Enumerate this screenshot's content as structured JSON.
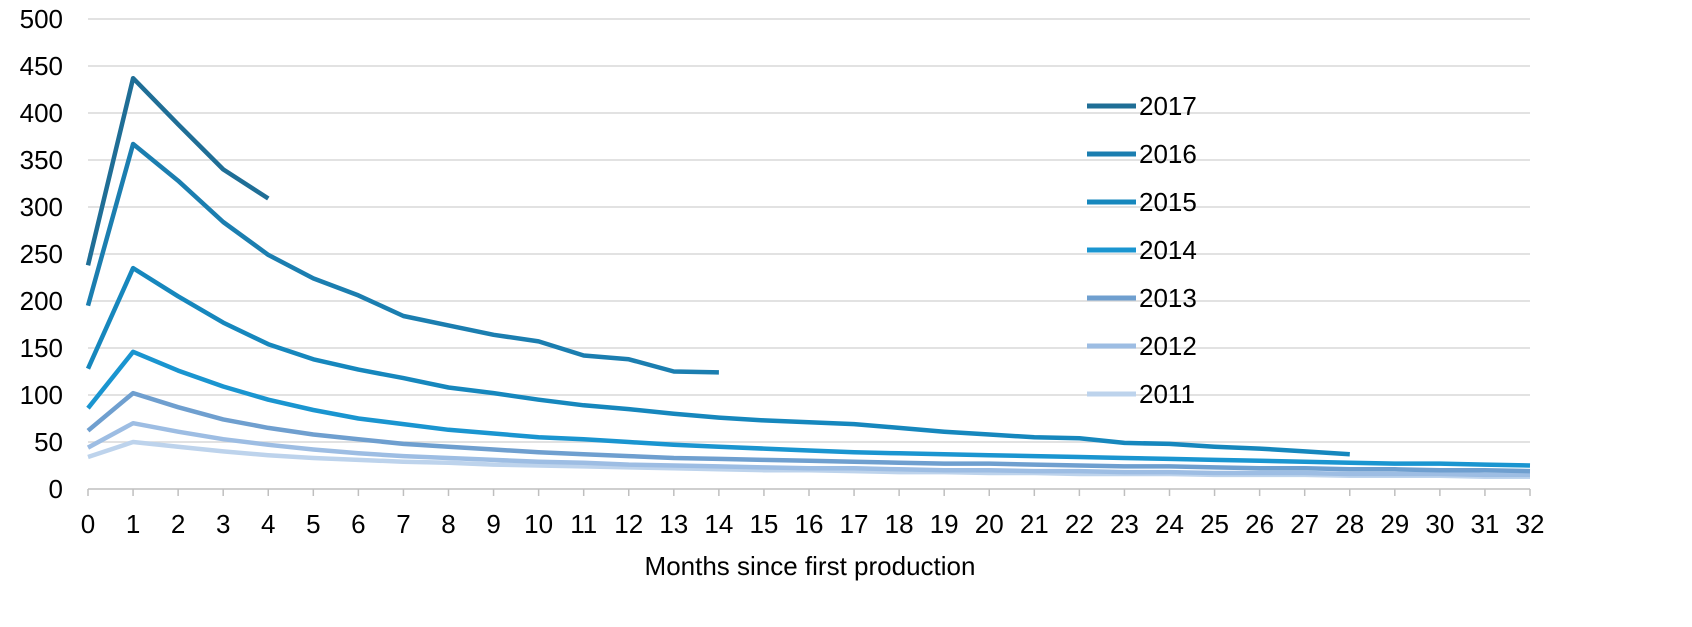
{
  "chart_data": {
    "type": "line",
    "title": "",
    "xlabel": "Months since first production",
    "ylabel": "",
    "xlim": [
      0,
      32
    ],
    "ylim": [
      0,
      500
    ],
    "y_ticks": [
      0,
      50,
      100,
      150,
      200,
      250,
      300,
      350,
      400,
      450,
      500
    ],
    "x_ticks": [
      0,
      1,
      2,
      3,
      4,
      5,
      6,
      7,
      8,
      9,
      10,
      11,
      12,
      13,
      14,
      15,
      16,
      17,
      18,
      19,
      20,
      21,
      22,
      23,
      24,
      25,
      26,
      27,
      28,
      29,
      30,
      31,
      32
    ],
    "grid": true,
    "legend_position": "right",
    "series": [
      {
        "name": "2017",
        "color": "#1f6e96",
        "x": [
          0,
          1,
          2,
          3,
          4
        ],
        "values": [
          238,
          437,
          388,
          340,
          309
        ]
      },
      {
        "name": "2016",
        "color": "#1b7eb0",
        "x": [
          0,
          1,
          2,
          3,
          4,
          5,
          6,
          7,
          8,
          9,
          10,
          11,
          12,
          13,
          14
        ],
        "values": [
          195,
          367,
          328,
          284,
          249,
          224,
          206,
          184,
          174,
          164,
          157,
          142,
          138,
          125,
          124
        ]
      },
      {
        "name": "2015",
        "color": "#1687bd",
        "x": [
          0,
          1,
          2,
          3,
          4,
          5,
          6,
          7,
          8,
          9,
          10,
          11,
          12,
          13,
          14,
          15,
          16,
          17,
          18,
          19,
          20,
          21,
          22,
          23,
          24,
          25,
          26,
          27,
          28
        ],
        "values": [
          128,
          235,
          205,
          177,
          154,
          138,
          127,
          118,
          108,
          102,
          95,
          89,
          85,
          80,
          76,
          73,
          71,
          69,
          65,
          61,
          58,
          55,
          54,
          49,
          48,
          45,
          43,
          40,
          37
        ]
      },
      {
        "name": "2014",
        "color": "#1a95d0",
        "x": [
          0,
          1,
          2,
          3,
          4,
          5,
          6,
          7,
          8,
          9,
          10,
          11,
          12,
          13,
          14,
          15,
          16,
          17,
          18,
          19,
          20,
          21,
          22,
          23,
          24,
          25,
          26,
          27,
          28,
          29,
          30,
          31,
          32
        ],
        "values": [
          86,
          146,
          126,
          109,
          95,
          84,
          75,
          69,
          63,
          59,
          55,
          53,
          50,
          47,
          45,
          43,
          41,
          39,
          38,
          37,
          36,
          35,
          34,
          33,
          32,
          31,
          30,
          29,
          28,
          27,
          27,
          26,
          25
        ]
      },
      {
        "name": "2013",
        "color": "#6f9fcf",
        "x": [
          0,
          1,
          2,
          3,
          4,
          5,
          6,
          7,
          8,
          9,
          10,
          11,
          12,
          13,
          14,
          15,
          16,
          17,
          18,
          19,
          20,
          21,
          22,
          23,
          24,
          25,
          26,
          27,
          28,
          29,
          30,
          31,
          32
        ],
        "values": [
          62,
          102,
          87,
          74,
          65,
          58,
          53,
          48,
          45,
          42,
          39,
          37,
          35,
          33,
          32,
          31,
          30,
          29,
          28,
          27,
          27,
          26,
          25,
          24,
          24,
          23,
          22,
          22,
          21,
          21,
          20,
          20,
          19
        ]
      },
      {
        "name": "2012",
        "color": "#9dbde3",
        "x": [
          0,
          1,
          2,
          3,
          4,
          5,
          6,
          7,
          8,
          9,
          10,
          11,
          12,
          13,
          14,
          15,
          16,
          17,
          18,
          19,
          20,
          21,
          22,
          23,
          24,
          25,
          26,
          27,
          28,
          29,
          30,
          31,
          32
        ],
        "values": [
          44,
          70,
          61,
          53,
          47,
          42,
          38,
          35,
          33,
          31,
          29,
          28,
          26,
          25,
          24,
          23,
          22,
          22,
          21,
          20,
          20,
          19,
          19,
          18,
          18,
          17,
          17,
          17,
          16,
          16,
          16,
          15,
          15
        ]
      },
      {
        "name": "2011",
        "color": "#bdd3ec",
        "x": [
          0,
          1,
          2,
          3,
          4,
          5,
          6,
          7,
          8,
          9,
          10,
          11,
          12,
          13,
          14,
          15,
          16,
          17,
          18,
          19,
          20,
          21,
          22,
          23,
          24,
          25,
          26,
          27,
          28,
          29,
          30,
          31,
          32
        ],
        "values": [
          34,
          50,
          45,
          40,
          36,
          33,
          31,
          29,
          28,
          26,
          25,
          24,
          23,
          22,
          21,
          20,
          20,
          19,
          18,
          18,
          17,
          17,
          16,
          16,
          16,
          15,
          15,
          15,
          14,
          14,
          14,
          13,
          13
        ]
      }
    ]
  }
}
